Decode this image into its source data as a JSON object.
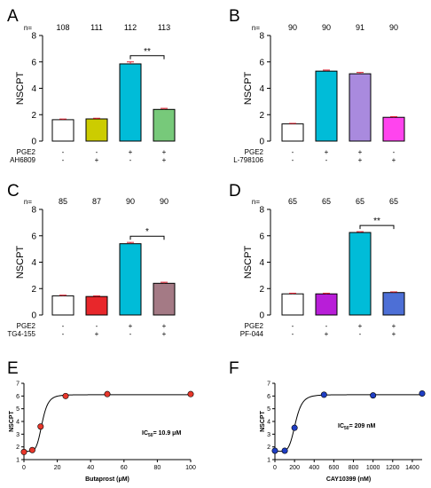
{
  "figure_title": "",
  "chart_data": [
    {
      "panel": "A",
      "type": "bar",
      "ylabel": "NSCPT",
      "ylim": [
        0,
        8
      ],
      "yticks": [
        0,
        2,
        4,
        6,
        8
      ],
      "n_label": "n=",
      "n_values": [
        "108",
        "111",
        "112",
        "113"
      ],
      "values": [
        1.62,
        1.68,
        5.85,
        2.4
      ],
      "errors": [
        0.05,
        0.05,
        0.15,
        0.08
      ],
      "colors": [
        "#ffffff",
        "#cccc00",
        "#00bcd8",
        "#77c97a"
      ],
      "conditions": [
        {
          "label": "PGE2",
          "marks": [
            "-",
            "-",
            "+",
            "+"
          ]
        },
        {
          "label": "AH6809",
          "marks": [
            "-",
            "+",
            "-",
            "+"
          ]
        }
      ],
      "significance": {
        "from": 2,
        "to": 3,
        "label": "**"
      }
    },
    {
      "panel": "B",
      "type": "bar",
      "ylabel": "NSCPT",
      "ylim": [
        0,
        8
      ],
      "yticks": [
        0,
        2,
        4,
        6,
        8
      ],
      "n_label": "n=",
      "n_values": [
        "90",
        "90",
        "91",
        "90"
      ],
      "values": [
        1.3,
        5.3,
        5.1,
        1.8
      ],
      "errors": [
        0.04,
        0.08,
        0.1,
        0.05
      ],
      "colors": [
        "#ffffff",
        "#00bcd8",
        "#a98ade",
        "#ff44ee"
      ],
      "conditions": [
        {
          "label": "PGE2",
          "marks": [
            "-",
            "+",
            "+",
            "-"
          ]
        },
        {
          "label": "L-798106",
          "marks": [
            "-",
            "-",
            "+",
            "+"
          ]
        }
      ],
      "significance": null
    },
    {
      "panel": "C",
      "type": "bar",
      "ylabel": "NSCPT",
      "ylim": [
        0,
        8
      ],
      "yticks": [
        0,
        2,
        4,
        6,
        8
      ],
      "n_label": "n=",
      "n_values": [
        "85",
        "87",
        "90",
        "90"
      ],
      "values": [
        1.45,
        1.4,
        5.4,
        2.4
      ],
      "errors": [
        0.05,
        0.05,
        0.1,
        0.08
      ],
      "colors": [
        "#ffffff",
        "#e8272b",
        "#00bcd8",
        "#a47a85"
      ],
      "conditions": [
        {
          "label": "PGE2",
          "marks": [
            "-",
            "-",
            "+",
            "+"
          ]
        },
        {
          "label": "TG4-155",
          "marks": [
            "-",
            "+",
            "-",
            "+"
          ]
        }
      ],
      "significance": {
        "from": 2,
        "to": 3,
        "label": "*"
      }
    },
    {
      "panel": "D",
      "type": "bar",
      "ylabel": "NSCPT",
      "ylim": [
        0,
        8
      ],
      "yticks": [
        0,
        2,
        4,
        6,
        8
      ],
      "n_label": "n=",
      "n_values": [
        "65",
        "65",
        "65",
        "65"
      ],
      "values": [
        1.6,
        1.6,
        6.25,
        1.7
      ],
      "errors": [
        0.05,
        0.05,
        0.06,
        0.05
      ],
      "colors": [
        "#ffffff",
        "#b81ed8",
        "#00bcd8",
        "#4d6fd6"
      ],
      "conditions": [
        {
          "label": "PGE2",
          "marks": [
            "-",
            "-",
            "+",
            "+"
          ]
        },
        {
          "label": "PF-044",
          "marks": [
            "-",
            "+",
            "-",
            "+"
          ]
        }
      ],
      "significance": {
        "from": 2,
        "to": 3,
        "label": "**"
      }
    },
    {
      "panel": "E",
      "type": "scatter",
      "xlabel": "Butaprost (μM)",
      "ylabel": "NSCPT",
      "xlim": [
        0,
        100
      ],
      "ylim": [
        1,
        7
      ],
      "xticks": [
        0,
        20,
        40,
        60,
        80,
        100
      ],
      "yticks": [
        1,
        2,
        3,
        4,
        5,
        6,
        7
      ],
      "x": [
        0,
        5,
        10,
        25,
        50,
        100
      ],
      "y": [
        1.6,
        1.75,
        3.6,
        6.0,
        6.15,
        6.15
      ],
      "point_color": "#e8372b",
      "fit": {
        "bottom": 1.65,
        "top": 6.1,
        "ic50": 10.9,
        "hill": 6
      },
      "annotation": {
        "prefix": "IC",
        "sub": "50",
        "suffix": "= 10.9 μM"
      }
    },
    {
      "panel": "F",
      "type": "scatter",
      "xlabel": "CAY10399 (nM)",
      "ylabel": "NSCPT",
      "xlim": [
        0,
        1500
      ],
      "ylim": [
        1,
        7
      ],
      "xticks": [
        0,
        200,
        400,
        600,
        800,
        1000,
        1200,
        1400
      ],
      "yticks": [
        1,
        2,
        3,
        4,
        5,
        6,
        7
      ],
      "x": [
        0,
        100,
        200,
        500,
        1000,
        1500
      ],
      "y": [
        1.7,
        1.7,
        3.5,
        6.1,
        6.05,
        6.2
      ],
      "point_color": "#1f3ec4",
      "fit": {
        "bottom": 1.65,
        "top": 6.1,
        "ic50": 209,
        "hill": 6
      },
      "annotation": {
        "prefix": "IC",
        "sub": "50",
        "suffix": "= 209 nM"
      }
    }
  ]
}
